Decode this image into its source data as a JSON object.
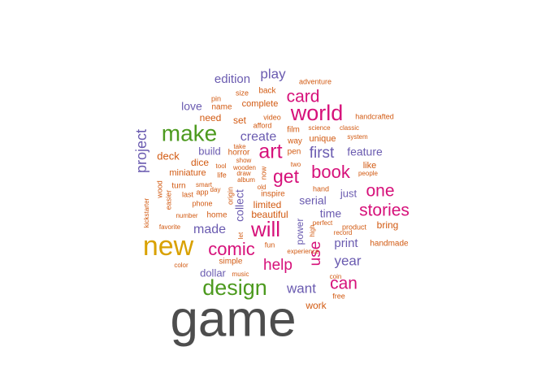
{
  "colors": {
    "gray": "#4d4d4d",
    "gold": "#d9a100",
    "green": "#4c9a1e",
    "magenta": "#d6117a",
    "purple": "#6a5bb0",
    "orange": "#d25a12"
  },
  "words": [
    {
      "text": "game",
      "color": "gray"
    },
    {
      "text": "new",
      "color": "gold"
    },
    {
      "text": "design",
      "color": "green"
    },
    {
      "text": "make",
      "color": "green"
    },
    {
      "text": "world",
      "color": "magenta"
    },
    {
      "text": "art",
      "color": "magenta"
    },
    {
      "text": "will",
      "color": "magenta"
    },
    {
      "text": "comic",
      "color": "magenta"
    },
    {
      "text": "stories",
      "color": "magenta"
    },
    {
      "text": "card",
      "color": "magenta"
    },
    {
      "text": "get",
      "color": "magenta"
    },
    {
      "text": "book",
      "color": "magenta"
    },
    {
      "text": "one",
      "color": "magenta"
    },
    {
      "text": "help",
      "color": "magenta"
    },
    {
      "text": "can",
      "color": "magenta"
    },
    {
      "text": "use",
      "color": "magenta"
    },
    {
      "text": "first",
      "color": "purple"
    },
    {
      "text": "project",
      "color": "purple"
    },
    {
      "text": "play",
      "color": "purple"
    },
    {
      "text": "create",
      "color": "purple"
    },
    {
      "text": "want",
      "color": "purple"
    },
    {
      "text": "year",
      "color": "purple"
    },
    {
      "text": "edition",
      "color": "purple"
    },
    {
      "text": "made",
      "color": "purple"
    },
    {
      "text": "print",
      "color": "purple"
    },
    {
      "text": "love",
      "color": "purple"
    },
    {
      "text": "feature",
      "color": "purple"
    },
    {
      "text": "time",
      "color": "purple"
    },
    {
      "text": "collect",
      "color": "purple"
    },
    {
      "text": "serial",
      "color": "purple"
    },
    {
      "text": "build",
      "color": "purple"
    },
    {
      "text": "dollar",
      "color": "purple"
    },
    {
      "text": "just",
      "color": "purple"
    },
    {
      "text": "power",
      "color": "purple"
    },
    {
      "text": "deck",
      "color": "orange"
    },
    {
      "text": "need",
      "color": "orange"
    },
    {
      "text": "set",
      "color": "orange"
    },
    {
      "text": "limited",
      "color": "orange"
    },
    {
      "text": "beautiful",
      "color": "orange"
    },
    {
      "text": "dice",
      "color": "orange"
    },
    {
      "text": "miniature",
      "color": "orange"
    },
    {
      "text": "unique",
      "color": "orange"
    },
    {
      "text": "like",
      "color": "orange"
    },
    {
      "text": "bring",
      "color": "orange"
    },
    {
      "text": "work",
      "color": "orange"
    },
    {
      "text": "inspire",
      "color": "orange"
    },
    {
      "text": "complete",
      "color": "orange"
    },
    {
      "text": "name",
      "color": "orange"
    },
    {
      "text": "back",
      "color": "orange"
    },
    {
      "text": "turn",
      "color": "orange"
    },
    {
      "text": "film",
      "color": "orange"
    },
    {
      "text": "way",
      "color": "orange"
    },
    {
      "text": "pen",
      "color": "orange"
    },
    {
      "text": "horror",
      "color": "orange"
    },
    {
      "text": "life",
      "color": "orange"
    },
    {
      "text": "home",
      "color": "orange"
    },
    {
      "text": "simple",
      "color": "orange"
    },
    {
      "text": "fun",
      "color": "orange"
    },
    {
      "text": "handmade",
      "color": "orange"
    },
    {
      "text": "adventure",
      "color": "orange"
    },
    {
      "text": "size",
      "color": "orange"
    },
    {
      "text": "pin",
      "color": "orange"
    },
    {
      "text": "afford",
      "color": "orange"
    },
    {
      "text": "video",
      "color": "orange"
    },
    {
      "text": "handcrafted",
      "color": "orange"
    },
    {
      "text": "science",
      "color": "orange"
    },
    {
      "text": "classic",
      "color": "orange"
    },
    {
      "text": "system",
      "color": "orange"
    },
    {
      "text": "take",
      "color": "orange"
    },
    {
      "text": "show",
      "color": "orange"
    },
    {
      "text": "two",
      "color": "orange"
    },
    {
      "text": "tool",
      "color": "orange"
    },
    {
      "text": "wooden",
      "color": "orange"
    },
    {
      "text": "draw",
      "color": "orange"
    },
    {
      "text": "album",
      "color": "orange"
    },
    {
      "text": "smart",
      "color": "orange"
    },
    {
      "text": "app",
      "color": "orange"
    },
    {
      "text": "day",
      "color": "orange"
    },
    {
      "text": "old",
      "color": "orange"
    },
    {
      "text": "hand",
      "color": "orange"
    },
    {
      "text": "people",
      "color": "orange"
    },
    {
      "text": "wood",
      "color": "orange"
    },
    {
      "text": "easier",
      "color": "orange"
    },
    {
      "text": "last",
      "color": "orange"
    },
    {
      "text": "phone",
      "color": "orange"
    },
    {
      "text": "number",
      "color": "orange"
    },
    {
      "text": "kickstarter",
      "color": "orange"
    },
    {
      "text": "favorite",
      "color": "orange"
    },
    {
      "text": "color",
      "color": "orange"
    },
    {
      "text": "music",
      "color": "orange"
    },
    {
      "text": "experience",
      "color": "orange"
    },
    {
      "text": "high",
      "color": "orange"
    },
    {
      "text": "let",
      "color": "orange"
    },
    {
      "text": "perfect",
      "color": "orange"
    },
    {
      "text": "product",
      "color": "orange"
    },
    {
      "text": "record",
      "color": "orange"
    },
    {
      "text": "coin",
      "color": "orange"
    },
    {
      "text": "free",
      "color": "orange"
    },
    {
      "text": "origin",
      "color": "orange"
    },
    {
      "text": "now",
      "color": "orange"
    }
  ]
}
